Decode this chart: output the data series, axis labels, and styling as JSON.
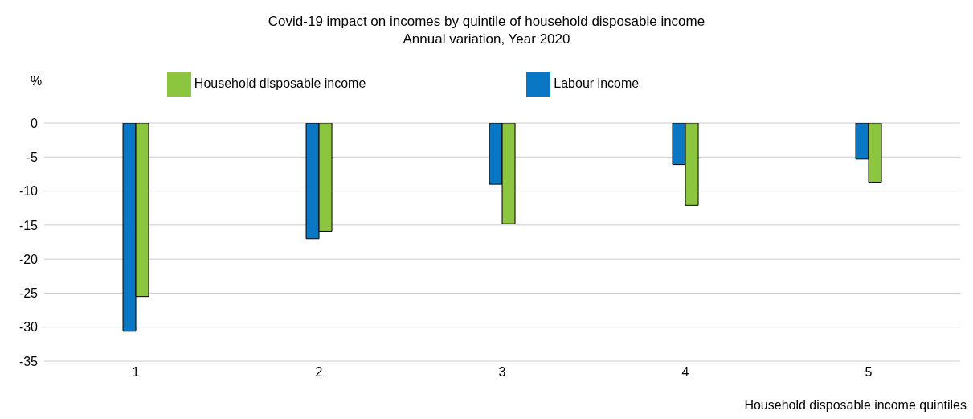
{
  "chart_data": {
    "type": "bar",
    "title": "Covid-19 impact on incomes by quintile of household disposable income",
    "subtitle": "Annual variation, Year  2020",
    "xlabel": "Household disposable income quintiles",
    "ylabel": "%",
    "categories": [
      "1",
      "2",
      "3",
      "4",
      "5"
    ],
    "series": [
      {
        "name": "Labour income",
        "color": "#0a77c4",
        "values": [
          -30.6,
          -17.0,
          -9.0,
          -6.1,
          -5.3
        ]
      },
      {
        "name": "Household disposable income",
        "color": "#8cc63f",
        "values": [
          -25.5,
          -15.9,
          -14.8,
          -12.1,
          -8.7
        ]
      }
    ],
    "ylim": [
      -35,
      0
    ],
    "yticks": [
      0,
      -5,
      -10,
      -15,
      -20,
      -25,
      -30,
      -35
    ],
    "grid": "y",
    "legend": "top"
  }
}
